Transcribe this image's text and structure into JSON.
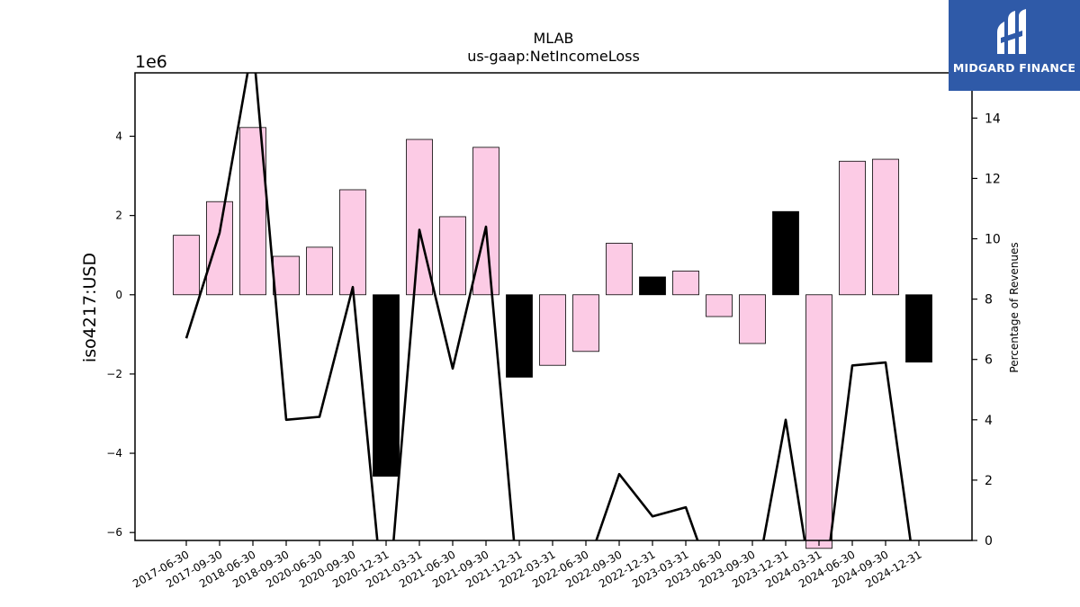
{
  "chart_data": {
    "type": "bar",
    "title": "MLAB",
    "subtitle": "us-gaap:NetIncomeLoss",
    "ylabel": "iso4217:USD",
    "y_offset_label": "1e6",
    "y2label": "Percentage of Revenues",
    "ylim": [
      -6.2,
      5.6
    ],
    "y2lim": [
      0,
      15.5
    ],
    "yticks": [
      -6,
      -4,
      -2,
      0,
      2,
      4
    ],
    "y2ticks": [
      0,
      2,
      4,
      6,
      8,
      10,
      12,
      14
    ],
    "grid": false,
    "categories": [
      "2017-06-30",
      "2017-09-30",
      "2018-06-30",
      "2018-09-30",
      "2020-06-30",
      "2020-09-30",
      "2020-12-31",
      "2021-03-31",
      "2021-06-30",
      "2021-09-30",
      "2021-12-31",
      "2022-03-31",
      "2022-06-30",
      "2022-09-30",
      "2022-12-31",
      "2023-03-31",
      "2023-06-30",
      "2023-09-30",
      "2023-12-31",
      "2024-03-31",
      "2024-06-30",
      "2024-09-30",
      "2024-12-31"
    ],
    "series": [
      {
        "type": "bar",
        "values": [
          1.5,
          2.35,
          4.22,
          0.97,
          1.2,
          2.65,
          -4.58,
          3.92,
          1.97,
          3.72,
          -2.08,
          -1.78,
          -1.43,
          1.3,
          0.45,
          0.6,
          -0.55,
          -1.23,
          2.1,
          -6.4,
          3.37,
          3.42,
          -1.7
        ],
        "colors": [
          "#fccbe5",
          "#fccbe5",
          "#fccbe5",
          "#fccbe5",
          "#fccbe5",
          "#fccbe5",
          "#000000",
          "#fccbe5",
          "#fccbe5",
          "#fccbe5",
          "#000000",
          "#fccbe5",
          "#fccbe5",
          "#fccbe5",
          "#000000",
          "#fccbe5",
          "#fccbe5",
          "#fccbe5",
          "#000000",
          "#fccbe5",
          "#fccbe5",
          "#fccbe5",
          "#000000"
        ]
      },
      {
        "type": "line",
        "axis": "right",
        "color": "#000000",
        "values": [
          6.7,
          10.2,
          16.5,
          4.0,
          4.1,
          8.4,
          -3.0,
          10.3,
          5.7,
          10.4,
          -2.0,
          -2.0,
          -1.0,
          2.2,
          0.8,
          1.1,
          -2.0,
          -2.0,
          4.0,
          -3.0,
          5.8,
          5.9,
          -2.0
        ]
      }
    ]
  },
  "brand": {
    "name": "MIDGARD FINANCE",
    "color": "#2f5aa8",
    "icon": "midgard-logo-icon"
  }
}
